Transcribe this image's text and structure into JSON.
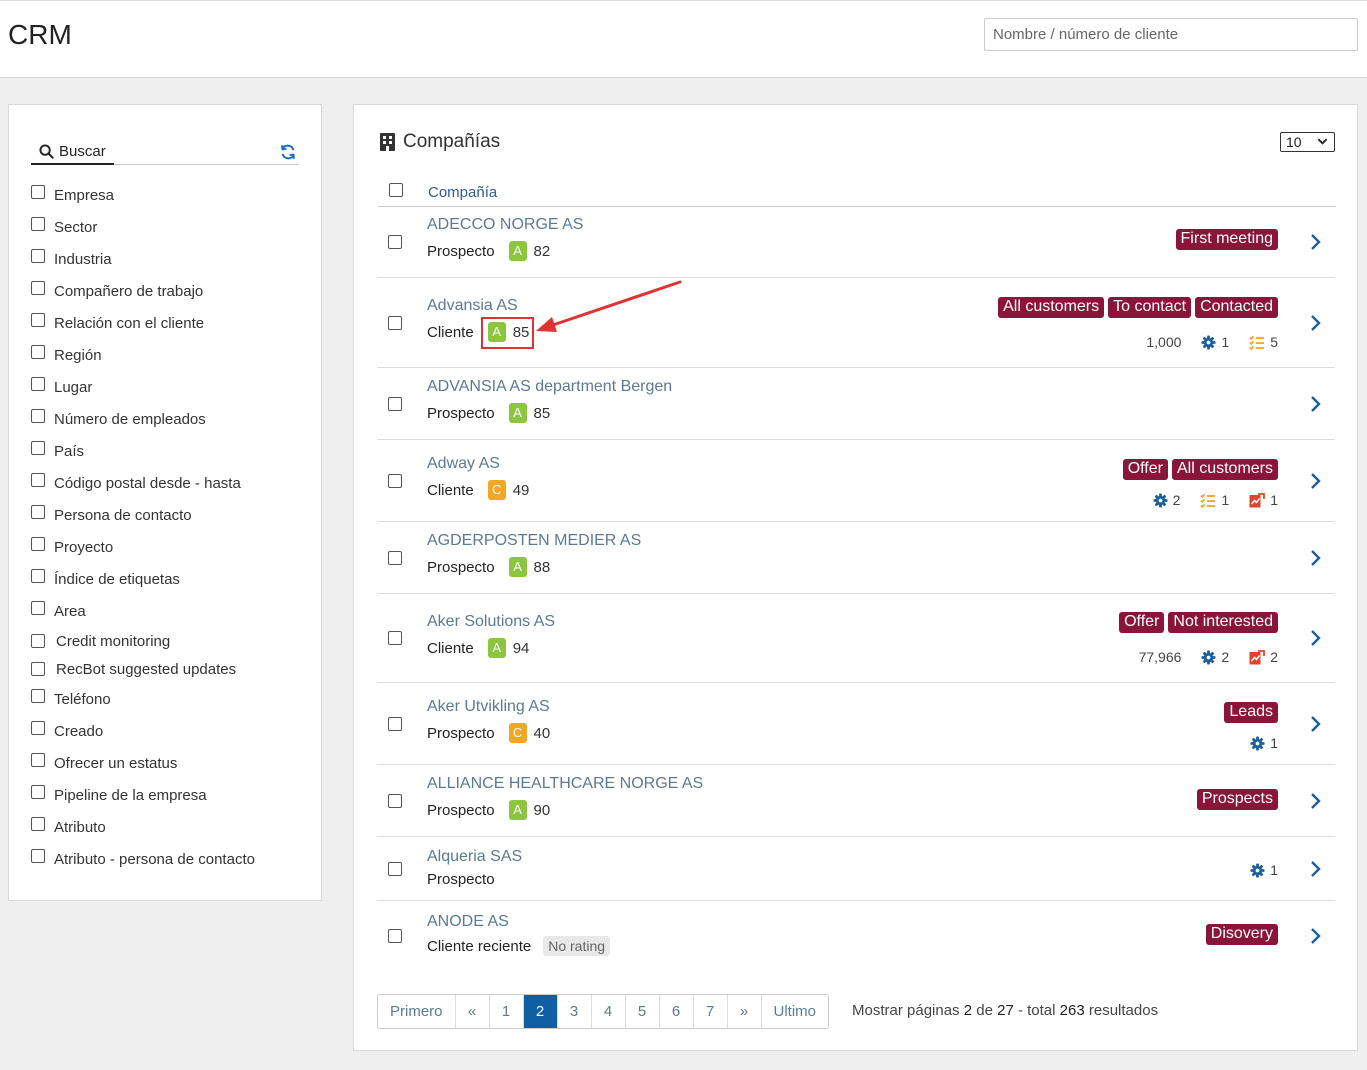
{
  "header": {
    "title": "CRM",
    "search_placeholder": "Nombre / número de cliente"
  },
  "sidebar": {
    "search_label": "Buscar",
    "filters": [
      "Empresa",
      "Sector",
      "Industria",
      "Compañero de trabajo",
      "Relación con el cliente",
      "Región",
      "Lugar",
      "Número de empleados",
      "País",
      "Código postal desde - hasta",
      "Persona de contacto",
      "Proyecto",
      "Índice de etiquetas",
      "Area",
      "Credit monitoring",
      "RecBot suggested updates",
      "Teléfono",
      "Creado",
      "Ofrecer un estatus",
      "Pipeline de la empresa",
      "Atributo",
      "Atributo - persona de contacto"
    ]
  },
  "main": {
    "title": "Compañías",
    "per_page": "10",
    "column_header": "Compañía",
    "companies": [
      {
        "name": "ADECCO NORGE AS",
        "type": "Prospecto",
        "grade": "A",
        "score": "82",
        "tags": [
          "First meeting"
        ]
      },
      {
        "name": "Advansia AS",
        "type": "Cliente",
        "grade": "A",
        "score": "85",
        "tags": [
          "All customers",
          "To contact",
          "Contacted"
        ],
        "employees": "1,000",
        "stats_gear": "1",
        "stats_tasks": "5"
      },
      {
        "name": "ADVANSIA AS department Bergen",
        "type": "Prospecto",
        "grade": "A",
        "score": "85"
      },
      {
        "name": "Adway AS",
        "type": "Cliente",
        "grade": "C",
        "score": "49",
        "tags": [
          "Offer",
          "All customers"
        ],
        "stats_gear": "2",
        "stats_tasks": "1",
        "stats_sales": "1"
      },
      {
        "name": "AGDERPOSTEN MEDIER AS",
        "type": "Prospecto",
        "grade": "A",
        "score": "88"
      },
      {
        "name": "Aker Solutions AS",
        "type": "Cliente",
        "grade": "A",
        "score": "94",
        "tags": [
          "Offer",
          "Not interested"
        ],
        "employees": "77,966",
        "stats_gear": "2",
        "stats_sales": "2"
      },
      {
        "name": "Aker Utvikling AS",
        "type": "Prospecto",
        "grade": "C",
        "score": "40",
        "tags": [
          "Leads"
        ],
        "stats_gear": "1"
      },
      {
        "name": "ALLIANCE HEALTHCARE NORGE AS",
        "type": "Prospecto",
        "grade": "A",
        "score": "90",
        "tags": [
          "Prospects"
        ]
      },
      {
        "name": "Alqueria SAS",
        "type": "Prospecto",
        "stats_gear": "1"
      },
      {
        "name": "ANODE AS",
        "type": "Cliente reciente",
        "no_rating": "No rating",
        "tags": [
          "Disovery"
        ]
      }
    ]
  },
  "pagination": {
    "first": "Primero",
    "prev": "«",
    "pages": [
      "1",
      "2",
      "3",
      "4",
      "5",
      "6",
      "7"
    ],
    "active": "2",
    "next": "»",
    "last": "Ultimo",
    "info_prefix": "Mostrar páginas",
    "current": "2",
    "of_word": "de",
    "total_pages": "27",
    "total_word": "- total",
    "total_results": "263",
    "results_word": "resultados"
  },
  "colors": {
    "tag": "#8a1538",
    "grade_a": "#8cc63f",
    "grade_c": "#f5a623",
    "active_page": "#0e5fa3",
    "highlight": "#e03434"
  }
}
